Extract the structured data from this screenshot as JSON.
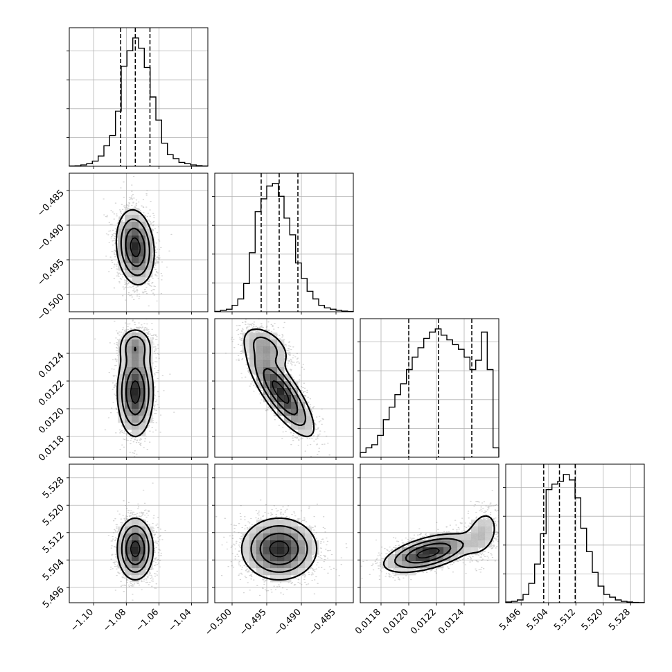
{
  "chart_data": {
    "type": "corner",
    "params": [
      {
        "name": "",
        "range": [
          -1.115,
          -1.03
        ],
        "ticks": [
          -1.1,
          -1.08,
          -1.06,
          -1.04
        ],
        "tick_labels": [
          "−1.10",
          "−1.08",
          "−1.06",
          "−1.04"
        ],
        "quantiles": [
          -1.0835,
          -1.0745,
          -1.0655
        ],
        "mean": -1.0745,
        "sd": 0.0058
      },
      {
        "name": "",
        "range": [
          -0.5025,
          -0.4825
        ],
        "ticks": [
          -0.5,
          -0.495,
          -0.49,
          -0.485
        ],
        "tick_labels": [
          "−0.500",
          "−0.495",
          "−0.490",
          "−0.485"
        ],
        "quantiles": [
          -0.4958,
          -0.4932,
          -0.4905
        ],
        "mean": -0.4932,
        "sd": 0.0027
      },
      {
        "name": "",
        "range": [
          0.01165,
          0.01265
        ],
        "ticks": [
          0.0118,
          0.012,
          0.0122,
          0.0124
        ],
        "tick_labels": [
          "0.0118",
          "0.0120",
          "0.0122",
          "0.0124"
        ],
        "quantiles": [
          0.012,
          0.012215,
          0.012455
        ],
        "mean": 0.01221,
        "sd": 0.00018
      },
      {
        "name": "",
        "range": [
          5.4915,
          5.532
        ],
        "ticks": [
          5.496,
          5.504,
          5.512,
          5.52,
          5.528
        ],
        "tick_labels": [
          "5.496",
          "5.504",
          "5.512",
          "5.520",
          "5.528"
        ],
        "quantiles": [
          5.5026,
          5.5072,
          5.5118
        ],
        "mean": 5.5072,
        "sd": 0.0046
      }
    ],
    "histograms": [
      [
        0.002,
        0.004,
        0.01,
        0.02,
        0.04,
        0.08,
        0.16,
        0.24,
        0.43,
        0.78,
        0.9,
        1.0,
        0.92,
        0.77,
        0.54,
        0.36,
        0.18,
        0.09,
        0.06,
        0.03,
        0.02,
        0.01,
        0.005,
        0.002
      ],
      [
        0.003,
        0.01,
        0.02,
        0.05,
        0.1,
        0.22,
        0.46,
        0.78,
        0.88,
        0.98,
        1.0,
        0.9,
        0.73,
        0.6,
        0.38,
        0.26,
        0.16,
        0.1,
        0.05,
        0.03,
        0.02,
        0.01,
        0.005,
        0.002
      ],
      [
        0.03,
        0.06,
        0.08,
        0.14,
        0.24,
        0.32,
        0.4,
        0.47,
        0.56,
        0.64,
        0.7,
        0.76,
        0.8,
        0.82,
        0.78,
        0.75,
        0.72,
        0.69,
        0.64,
        0.56,
        0.62,
        0.8,
        0.56,
        0.06
      ],
      [
        0.005,
        0.01,
        0.02,
        0.06,
        0.14,
        0.28,
        0.5,
        0.82,
        0.86,
        0.88,
        0.93,
        0.89,
        0.76,
        0.54,
        0.37,
        0.22,
        0.12,
        0.06,
        0.04,
        0.02,
        0.01,
        0.005,
        0.002,
        0.001
      ]
    ],
    "blobs": [
      [
        {
          "xy": [
            -1.0745,
            -0.4932
          ],
          "s": [
            0.0058,
            0.0027
          ],
          "r": -0.15,
          "w": 1
        }
      ],
      [
        {
          "xy": [
            -1.0745,
            0.01245
          ],
          "s": [
            0.0052,
            7e-05
          ],
          "r": 0,
          "w": 0.32
        },
        {
          "xy": [
            -1.0745,
            0.01212
          ],
          "s": [
            0.0055,
            0.00016
          ],
          "r": 0,
          "w": 0.68
        }
      ],
      [
        {
          "xy": [
            -0.495,
            0.01245
          ],
          "s": [
            0.0018,
            8e-05
          ],
          "r": -0.5,
          "w": 0.3
        },
        {
          "xy": [
            -0.493,
            0.01212
          ],
          "s": [
            0.0024,
            0.00016
          ],
          "r": -0.8,
          "w": 0.7
        }
      ],
      [
        {
          "xy": [
            -1.0745,
            5.5072
          ],
          "s": [
            0.0055,
            0.0045
          ],
          "r": 0,
          "w": 1
        }
      ],
      [
        {
          "xy": [
            -0.4932,
            5.5072
          ],
          "s": [
            0.0027,
            0.0045
          ],
          "r": 0,
          "w": 1
        }
      ],
      [
        {
          "xy": [
            0.01214,
            5.506
          ],
          "s": [
            0.00016,
            0.0028
          ],
          "r": 0.55,
          "w": 0.78
        },
        {
          "xy": [
            0.01253,
            5.512
          ],
          "s": [
            7e-05,
            0.004
          ],
          "r": 0.3,
          "w": 0.22
        }
      ]
    ],
    "contour_levels": [
      0.135,
      0.325,
      0.6,
      0.88
    ],
    "n_samples": 2500,
    "grid": true,
    "colors": {
      "line": "#000000",
      "grid": "#b0b0b0",
      "points": "#808080"
    }
  }
}
